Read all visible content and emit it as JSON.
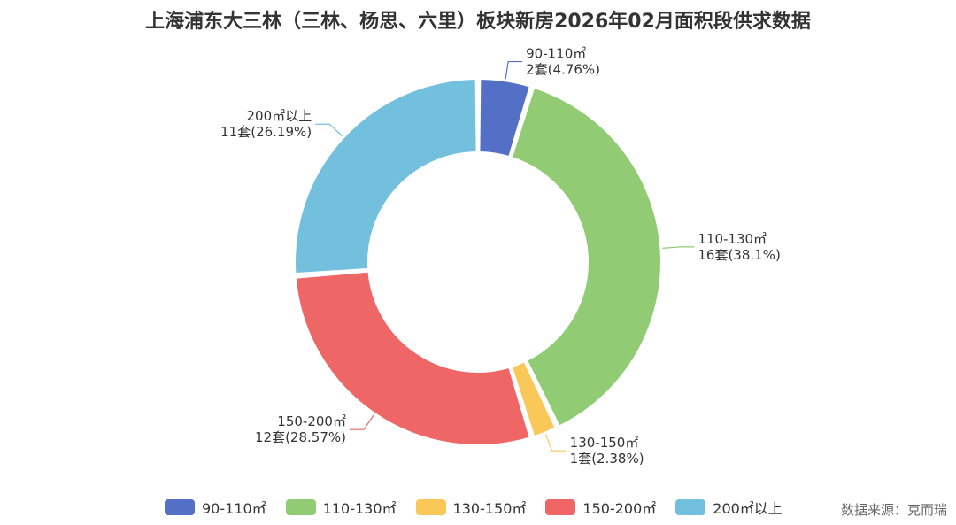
{
  "chart_data": {
    "type": "pie",
    "subtype": "donut",
    "title": "上海浦东大三林（三林、杨思、六里）板块新房2026年02月面积段供求数据",
    "unit": "套",
    "slices": [
      {
        "name": "90-110㎡",
        "value": 2,
        "percent_label": "2套(4.76%)",
        "color": "#5470c6"
      },
      {
        "name": "110-130㎡",
        "value": 16,
        "percent_label": "16套(38.1%)",
        "color": "#91cc75"
      },
      {
        "name": "130-150㎡",
        "value": 1,
        "percent_label": "1套(2.38%)",
        "color": "#fac858"
      },
      {
        "name": "150-200㎡",
        "value": 12,
        "percent_label": "12套(28.57%)",
        "color": "#ee6666"
      },
      {
        "name": "200㎡以上",
        "value": 11,
        "percent_label": "11套(26.19%)",
        "color": "#73c0de"
      }
    ],
    "legend_position": "bottom",
    "source": "数据来源：克而瑞"
  }
}
